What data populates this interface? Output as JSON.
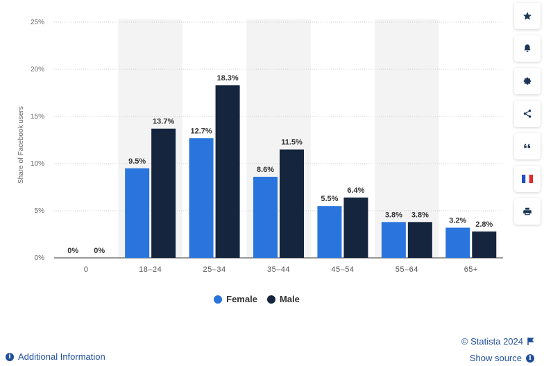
{
  "chart_data": {
    "type": "bar",
    "categories": [
      "0",
      "18-24",
      "25-34",
      "35-44",
      "45-54",
      "55-64",
      "65+"
    ],
    "series": [
      {
        "name": "Female",
        "color": "#2a74dd",
        "values": [
          0,
          9.5,
          12.7,
          8.6,
          5.5,
          3.8,
          3.2
        ]
      },
      {
        "name": "Male",
        "color": "#14253d",
        "values": [
          0,
          13.7,
          18.3,
          11.5,
          6.4,
          3.8,
          2.8
        ]
      }
    ],
    "data_labels": [
      [
        "0%",
        "9.5%",
        "12.7%",
        "8.6%",
        "5.5%",
        "3.8%",
        "3.2%"
      ],
      [
        "0%",
        "13.7%",
        "18.3%",
        "11.5%",
        "6.4%",
        "3.8%",
        "2.8%"
      ]
    ],
    "x_tick_labels": [
      "0",
      "18–24",
      "25–34",
      "35–44",
      "45–54",
      "55–64",
      "65+"
    ],
    "y_ticks": [
      0,
      5,
      10,
      15,
      20,
      25
    ],
    "y_tick_labels": [
      "0%",
      "5%",
      "10%",
      "15%",
      "20%",
      "25%"
    ],
    "ylim": [
      0,
      25
    ],
    "ylabel": "Share of Facebook users",
    "xlabel": "",
    "grid": true,
    "shaded_categories": [
      1,
      3,
      5
    ],
    "legend_position": "bottom"
  },
  "legend": {
    "female": "Female",
    "male": "Male"
  },
  "footer": {
    "credits": "© Statista 2024",
    "show_source": "Show source",
    "additional_info": "Additional Information",
    "info_glyph": "i"
  },
  "toolbar": {
    "icons": [
      "star-icon",
      "bell-icon",
      "gear-icon",
      "share-icon",
      "quote-icon",
      "flag-icon",
      "print-icon"
    ]
  },
  "colors": {
    "female": "#2a74dd",
    "male": "#14253d",
    "link": "#1f4f9c",
    "shade": "#f3f3f3"
  }
}
